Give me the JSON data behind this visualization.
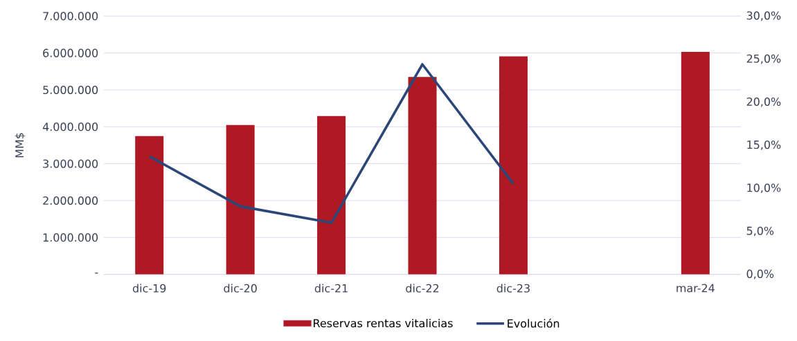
{
  "chart_data": {
    "type": "bar",
    "ylabel": "MM$",
    "categories": [
      "dic-19",
      "dic-20",
      "dic-21",
      "dic-22",
      "dic-23",
      null,
      "mar-24"
    ],
    "series": [
      {
        "name": "Reservas rentas vitalicias",
        "color": "#ae1923",
        "values": [
          3750000,
          4050000,
          4290000,
          5350000,
          5910000,
          null,
          6030000
        ]
      },
      {
        "name": "Evolución",
        "type": "line",
        "axis": "y2",
        "color": "#2b4779",
        "values": [
          13.7,
          7.9,
          6.0,
          24.4,
          10.5,
          null,
          null
        ]
      }
    ],
    "ylim": [
      0,
      7000000
    ],
    "yticks": [
      {
        "value": 0,
        "label": "-"
      },
      {
        "value": 1000000,
        "label": "1.000.000"
      },
      {
        "value": 2000000,
        "label": "2.000.000"
      },
      {
        "value": 3000000,
        "label": "3.000.000"
      },
      {
        "value": 4000000,
        "label": "4.000.000"
      },
      {
        "value": 5000000,
        "label": "5.000.000"
      },
      {
        "value": 6000000,
        "label": "6.000.000"
      },
      {
        "value": 7000000,
        "label": "7.000.000"
      }
    ],
    "y2lim": [
      0,
      30
    ],
    "y2ticks": [
      {
        "value": 0,
        "label": "0,0%"
      },
      {
        "value": 5,
        "label": "5,0%"
      },
      {
        "value": 10,
        "label": "10,0%"
      },
      {
        "value": 15,
        "label": "15,0%"
      },
      {
        "value": 20,
        "label": "20,0%"
      },
      {
        "value": 25,
        "label": "25,0%"
      },
      {
        "value": 30,
        "label": "30,0%"
      }
    ],
    "grid": "y",
    "legend": "bottom",
    "marker": "none",
    "line_style": "solid"
  }
}
